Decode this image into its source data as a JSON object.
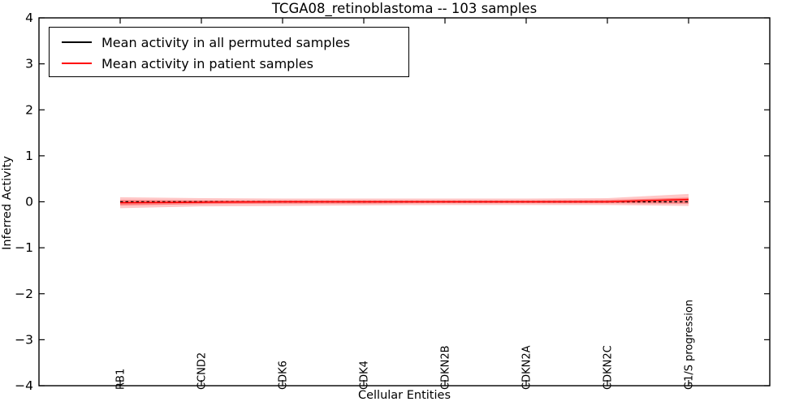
{
  "title": "TCGA08_retinoblastoma -- 103 samples",
  "axes": {
    "xlabel": "Cellular Entities",
    "ylabel": "Inferred Activity",
    "ytick_labels": [
      "4",
      "3",
      "2",
      "1",
      "0",
      "−1",
      "−2",
      "−3",
      "−4"
    ]
  },
  "legend": {
    "items": [
      {
        "label": "Mean activity in all permuted samples",
        "color": "#000000"
      },
      {
        "label": "Mean activity in patient samples",
        "color": "#ff0000"
      }
    ]
  },
  "chart_data": {
    "type": "line",
    "title": "TCGA08_retinoblastoma -- 103 samples",
    "xlabel": "Cellular Entities",
    "ylabel": "Inferred Activity",
    "categories": [
      "RB1",
      "CCND2",
      "CDK6",
      "CDK4",
      "CDKN2B",
      "CDKN2A",
      "CDKN2C",
      "G1/S progression"
    ],
    "ylim": [
      -4,
      4
    ],
    "yticks": [
      4,
      3,
      2,
      1,
      0,
      -1,
      -2,
      -3,
      -4
    ],
    "grid": false,
    "legend_position": "upper left",
    "series": [
      {
        "name": "Mean activity in all permuted samples",
        "color": "#000000",
        "style": "dashed",
        "values": [
          0,
          0,
          0,
          0,
          0,
          0,
          0,
          0
        ]
      },
      {
        "name": "Mean activity in patient samples",
        "color": "#ff0000",
        "style": "solid",
        "values": [
          -0.02,
          -0.01,
          0,
          0,
          0,
          0,
          0,
          0.05
        ]
      }
    ],
    "bands": [
      {
        "name": "patient-band-outer",
        "color": "#ff0000",
        "alpha": 0.22,
        "upper": [
          0.1,
          0.08,
          0.07,
          0.07,
          0.07,
          0.07,
          0.08,
          0.17
        ],
        "lower": [
          -0.14,
          -0.1,
          -0.09,
          -0.08,
          -0.07,
          -0.07,
          -0.07,
          -0.09
        ]
      },
      {
        "name": "patient-band-inner",
        "color": "#ff0000",
        "alpha": 0.35,
        "upper": [
          0.04,
          0.03,
          0.03,
          0.03,
          0.03,
          0.03,
          0.04,
          0.09
        ],
        "lower": [
          -0.08,
          -0.05,
          -0.04,
          -0.04,
          -0.03,
          -0.03,
          -0.03,
          -0.04
        ]
      }
    ]
  }
}
